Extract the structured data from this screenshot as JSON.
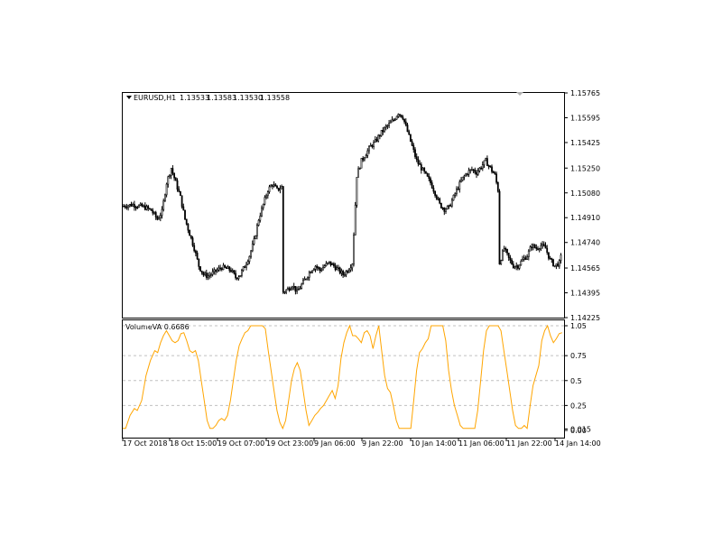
{
  "chart_data": [
    {
      "type": "candlestick",
      "symbol": "EURUSD,H1",
      "ohlc_header": [
        "1.13533",
        "1.13583",
        "1.13530",
        "1.13558"
      ],
      "ylim": [
        1.14225,
        1.15765
      ],
      "y_ticks": [
        "1.15765",
        "1.15595",
        "1.15425",
        "1.15250",
        "1.15080",
        "1.14910",
        "1.14740",
        "1.14565",
        "1.14395",
        "1.14225"
      ],
      "x_ticks": [
        "17 Oct 2018",
        "18 Oct 15:00",
        "19 Oct 07:00",
        "19 Oct 23:00",
        "9 Jan 06:00",
        "9 Jan 22:00",
        "10 Jan 14:00",
        "11 Jan 06:00",
        "11 Jan 22:00",
        "14 Jan 14:00"
      ],
      "close_path": [
        [
          0,
          1.1499
        ],
        [
          6,
          1.15
        ],
        [
          10,
          1.1499
        ],
        [
          14,
          1.1498
        ],
        [
          18,
          1.1496
        ],
        [
          22,
          1.149
        ],
        [
          25,
          1.1495
        ],
        [
          28,
          1.1515
        ],
        [
          31,
          1.1525
        ],
        [
          34,
          1.1515
        ],
        [
          37,
          1.1505
        ],
        [
          40,
          1.149
        ],
        [
          43,
          1.148
        ],
        [
          46,
          1.147
        ],
        [
          49,
          1.1458
        ],
        [
          52,
          1.1452
        ],
        [
          55,
          1.1451
        ],
        [
          58,
          1.1453
        ],
        [
          61,
          1.1455
        ],
        [
          64,
          1.1457
        ],
        [
          67,
          1.1456
        ],
        [
          70,
          1.1455
        ],
        [
          73,
          1.145
        ],
        [
          76,
          1.1452
        ],
        [
          79,
          1.1458
        ],
        [
          82,
          1.1465
        ],
        [
          85,
          1.1475
        ],
        [
          88,
          1.149
        ],
        [
          91,
          1.15
        ],
        [
          94,
          1.151
        ],
        [
          97,
          1.1514
        ],
        [
          100,
          1.151
        ],
        [
          103,
          1.1512
        ],
        [
          104,
          1.144
        ],
        [
          107,
          1.1442
        ],
        [
          110,
          1.1445
        ],
        [
          113,
          1.144
        ],
        [
          116,
          1.1445
        ],
        [
          119,
          1.145
        ],
        [
          122,
          1.1455
        ],
        [
          125,
          1.1458
        ],
        [
          128,
          1.1455
        ],
        [
          131,
          1.1458
        ],
        [
          134,
          1.146
        ],
        [
          137,
          1.1458
        ],
        [
          140,
          1.1455
        ],
        [
          143,
          1.1452
        ],
        [
          146,
          1.1455
        ],
        [
          149,
          1.146
        ],
        [
          152,
          1.152
        ],
        [
          155,
          1.153
        ],
        [
          158,
          1.1535
        ],
        [
          161,
          1.154
        ],
        [
          164,
          1.1543
        ],
        [
          167,
          1.1548
        ],
        [
          170,
          1.1552
        ],
        [
          173,
          1.1555
        ],
        [
          176,
          1.1558
        ],
        [
          179,
          1.1563
        ],
        [
          182,
          1.156
        ],
        [
          185,
          1.155
        ],
        [
          188,
          1.154
        ],
        [
          191,
          1.153
        ],
        [
          194,
          1.1525
        ],
        [
          197,
          1.152
        ],
        [
          200,
          1.1515
        ],
        [
          203,
          1.1508
        ],
        [
          206,
          1.15
        ],
        [
          209,
          1.1497
        ],
        [
          212,
          1.1498
        ],
        [
          215,
          1.1505
        ],
        [
          218,
          1.1512
        ],
        [
          221,
          1.1518
        ],
        [
          224,
          1.1522
        ],
        [
          227,
          1.1524
        ],
        [
          230,
          1.1522
        ],
        [
          233,
          1.1526
        ],
        [
          236,
          1.153
        ],
        [
          239,
          1.1525
        ],
        [
          242,
          1.152
        ],
        [
          244,
          1.151
        ],
        [
          245,
          1.146
        ],
        [
          248,
          1.147
        ],
        [
          251,
          1.1463
        ],
        [
          254,
          1.1458
        ],
        [
          257,
          1.1458
        ],
        [
          260,
          1.1462
        ],
        [
          263,
          1.1465
        ],
        [
          266,
          1.1472
        ],
        [
          269,
          1.147
        ],
        [
          272,
          1.1472
        ],
        [
          275,
          1.147
        ],
        [
          278,
          1.1462
        ],
        [
          281,
          1.1458
        ],
        [
          284,
          1.146
        ],
        [
          286,
          1.1468
        ]
      ]
    },
    {
      "type": "line",
      "title": "VolumeVA 0.6686",
      "ylim": [
        0,
        1.05
      ],
      "y_ticks": [
        "1.05",
        "0.75",
        "0.5",
        "0.25",
        "0.015",
        "0.00"
      ],
      "series": [
        {
          "name": "VolumeVA",
          "color": "#ffa500",
          "values": [
            [
              0,
              0.02
            ],
            [
              2,
              0.02
            ],
            [
              5,
              0.15
            ],
            [
              8,
              0.22
            ],
            [
              10,
              0.2
            ],
            [
              13,
              0.3
            ],
            [
              16,
              0.55
            ],
            [
              19,
              0.7
            ],
            [
              22,
              0.8
            ],
            [
              24,
              0.78
            ],
            [
              26,
              0.88
            ],
            [
              28,
              0.95
            ],
            [
              30,
              1.0
            ],
            [
              32,
              0.95
            ],
            [
              34,
              0.9
            ],
            [
              36,
              0.88
            ],
            [
              38,
              0.9
            ],
            [
              40,
              0.97
            ],
            [
              42,
              0.98
            ],
            [
              44,
              0.9
            ],
            [
              46,
              0.8
            ],
            [
              48,
              0.78
            ],
            [
              50,
              0.8
            ],
            [
              52,
              0.7
            ],
            [
              54,
              0.5
            ],
            [
              56,
              0.3
            ],
            [
              58,
              0.1
            ],
            [
              60,
              0.02
            ],
            [
              62,
              0.02
            ],
            [
              64,
              0.05
            ],
            [
              66,
              0.1
            ],
            [
              68,
              0.12
            ],
            [
              70,
              0.1
            ],
            [
              72,
              0.15
            ],
            [
              74,
              0.3
            ],
            [
              76,
              0.5
            ],
            [
              78,
              0.7
            ],
            [
              80,
              0.85
            ],
            [
              82,
              0.92
            ],
            [
              84,
              0.98
            ],
            [
              86,
              1.0
            ],
            [
              88,
              1.05
            ],
            [
              90,
              1.05
            ],
            [
              92,
              1.05
            ],
            [
              94,
              1.05
            ],
            [
              96,
              1.05
            ],
            [
              98,
              1.02
            ],
            [
              100,
              0.8
            ],
            [
              102,
              0.6
            ],
            [
              104,
              0.4
            ],
            [
              106,
              0.2
            ],
            [
              108,
              0.08
            ],
            [
              110,
              0.02
            ],
            [
              112,
              0.1
            ],
            [
              114,
              0.3
            ],
            [
              116,
              0.5
            ],
            [
              118,
              0.62
            ],
            [
              120,
              0.68
            ],
            [
              122,
              0.6
            ],
            [
              124,
              0.4
            ],
            [
              126,
              0.2
            ],
            [
              128,
              0.05
            ],
            [
              130,
              0.1
            ],
            [
              132,
              0.15
            ],
            [
              134,
              0.18
            ],
            [
              136,
              0.22
            ],
            [
              138,
              0.25
            ],
            [
              140,
              0.3
            ],
            [
              142,
              0.35
            ],
            [
              144,
              0.4
            ],
            [
              146,
              0.32
            ],
            [
              148,
              0.45
            ],
            [
              150,
              0.72
            ],
            [
              152,
              0.88
            ],
            [
              154,
              0.98
            ],
            [
              156,
              1.05
            ],
            [
              158,
              0.95
            ],
            [
              160,
              0.95
            ],
            [
              162,
              0.92
            ],
            [
              164,
              0.88
            ],
            [
              166,
              0.98
            ],
            [
              168,
              1.0
            ],
            [
              170,
              0.95
            ],
            [
              172,
              0.82
            ],
            [
              174,
              0.95
            ],
            [
              176,
              1.05
            ],
            [
              178,
              0.8
            ],
            [
              180,
              0.55
            ],
            [
              182,
              0.42
            ],
            [
              184,
              0.38
            ],
            [
              186,
              0.25
            ],
            [
              188,
              0.1
            ],
            [
              190,
              0.02
            ],
            [
              192,
              0.02
            ],
            [
              194,
              0.02
            ],
            [
              196,
              0.02
            ],
            [
              198,
              0.02
            ],
            [
              200,
              0.3
            ],
            [
              202,
              0.6
            ],
            [
              204,
              0.78
            ],
            [
              206,
              0.82
            ],
            [
              208,
              0.88
            ],
            [
              210,
              0.92
            ],
            [
              212,
              1.05
            ],
            [
              214,
              1.05
            ],
            [
              216,
              1.05
            ],
            [
              218,
              1.05
            ],
            [
              220,
              1.05
            ],
            [
              222,
              0.9
            ],
            [
              224,
              0.6
            ],
            [
              226,
              0.4
            ],
            [
              228,
              0.25
            ],
            [
              230,
              0.15
            ],
            [
              232,
              0.05
            ],
            [
              234,
              0.02
            ],
            [
              236,
              0.02
            ],
            [
              238,
              0.02
            ],
            [
              240,
              0.02
            ],
            [
              242,
              0.02
            ],
            [
              244,
              0.2
            ],
            [
              246,
              0.5
            ],
            [
              248,
              0.8
            ],
            [
              250,
              1.0
            ],
            [
              252,
              1.05
            ],
            [
              254,
              1.05
            ],
            [
              256,
              1.05
            ],
            [
              258,
              1.05
            ],
            [
              260,
              1.0
            ],
            [
              262,
              0.8
            ],
            [
              264,
              0.6
            ],
            [
              266,
              0.4
            ],
            [
              268,
              0.2
            ],
            [
              270,
              0.05
            ],
            [
              272,
              0.02
            ],
            [
              274,
              0.02
            ],
            [
              276,
              0.05
            ],
            [
              278,
              0.02
            ],
            [
              280,
              0.25
            ],
            [
              282,
              0.45
            ],
            [
              284,
              0.55
            ],
            [
              286,
              0.65
            ],
            [
              288,
              0.9
            ],
            [
              290,
              1.0
            ],
            [
              292,
              1.05
            ],
            [
              294,
              0.95
            ],
            [
              296,
              0.88
            ],
            [
              298,
              0.92
            ],
            [
              300,
              0.97
            ],
            [
              302,
              0.98
            ]
          ]
        }
      ]
    }
  ]
}
